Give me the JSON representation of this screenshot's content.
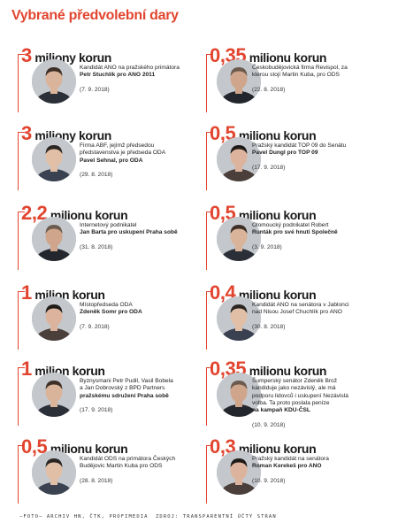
{
  "title": "Vybrané předvolební dary",
  "left": [
    {
      "num": "3",
      "unit": "miliony korun",
      "lines": [
        "Kandidát ANO na pražského primátora"
      ],
      "bold": [
        "Petr Stuchlík pro ANO 2011"
      ],
      "date": "(7. 9. 2018)"
    },
    {
      "num": "3",
      "unit": "miliony korun",
      "lines": [
        "Firma ABF, jejímž předsedou",
        "představenstva je předseda ODA"
      ],
      "bold": [
        "Pavel Sehnal, pro ODA"
      ],
      "date": "(29. 8. 2018)"
    },
    {
      "num": "2,2",
      "unit": "milionu korun",
      "lines": [
        "Internetový podnikatel"
      ],
      "bold": [
        "Jan Barta pro uskupení Praha sobě"
      ],
      "date": "(31. 8. 2018)"
    },
    {
      "num": "1",
      "unit": "milion korun",
      "lines": [
        "Místopředseda ODA"
      ],
      "bold": [
        "Zdeněk Somr pro ODA"
      ],
      "date": "(7. 9. 2018)"
    },
    {
      "num": "1",
      "unit": "milion korun",
      "lines": [
        "Byznysmani Petr Pudil, Vasil Bobela",
        "a Jan Dobrovský z BPD Partners"
      ],
      "bold": [
        "pražskému sdružení Praha sobě"
      ],
      "date": "(17. 9. 2018)"
    },
    {
      "num": "0,5",
      "unit": "milionu korun",
      "lines": [
        "Kandidát ODS na primátora Českých",
        "Budějovic Martin Kuba pro ODS"
      ],
      "bold": [],
      "date": "(28. 8. 2018)"
    }
  ],
  "right": [
    {
      "num": "0,35",
      "unit": "milionu korun",
      "lines": [
        "Českobudějovická firma Revispol, za",
        "kterou stojí Martin Kuba, pro ODS"
      ],
      "bold": [],
      "date": "(22. 8. 2018)"
    },
    {
      "num": "0,5",
      "unit": "milionu korun",
      "lines": [
        "Pražský kandidát TOP 09 do Senátu"
      ],
      "bold": [
        "Pavel Dungl pro TOP 09"
      ],
      "date": "(17. 9. 2018)"
    },
    {
      "num": "0,5",
      "unit": "milionu korun",
      "lines": [
        "Olomoucký podnikatel Robert"
      ],
      "bold": [
        "Runták pro své hnutí Společně"
      ],
      "date": "(3. 9. 2018)"
    },
    {
      "num": "0,4",
      "unit": "milionu korun",
      "lines": [
        "Kandidát ANO na senátora v Jablonci",
        "nad Nisou Josef Chuchlík pro ANO"
      ],
      "bold": [],
      "date": "(30. 8. 2018)"
    },
    {
      "num": "0,35",
      "unit": "milionu korun",
      "lines": [
        "Šumperský senátor Zdeněk Brož",
        "kandiduje jako nezávislý, ale má",
        "podporu lidovců i uskupení Nezávislá",
        "volba. Ta proto poslala peníze"
      ],
      "bold": [
        "na kampaň KDU-ČSL"
      ],
      "date": "(10. 9. 2018)"
    },
    {
      "num": "0,3",
      "unit": "milionu korun",
      "lines": [
        "Pražský kandidát na senátora"
      ],
      "bold": [
        "Roman Kerekeš pro ANO"
      ],
      "date": "(10. 9. 2018)"
    }
  ],
  "footer_left": "–FOTO– ARCHIV HN, ČTK, PROFIMEDIA",
  "footer_right": "ZDROJ: TRANSPARENTNÍ ÚČTY STRAN",
  "colors": {
    "accent": "#e2452f"
  }
}
